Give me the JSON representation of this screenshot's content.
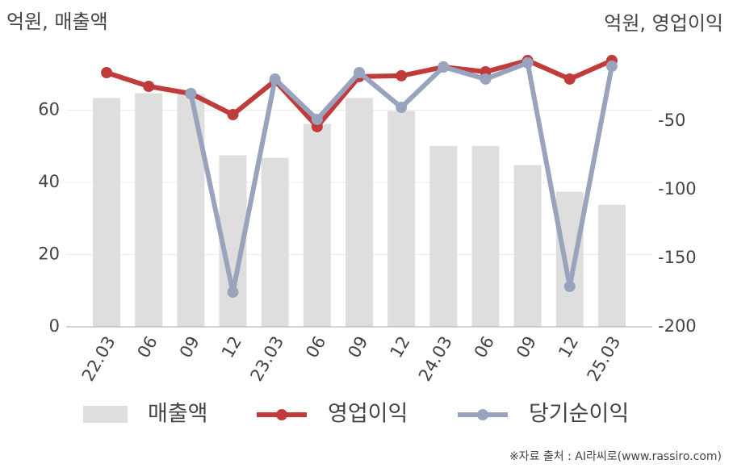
{
  "chart_data": {
    "type": "bar_line",
    "y_label": "억원, 매출액",
    "y2_label": "억원, 영업이익",
    "source": "※자료 출처 : AI라씨로(www.rassiro.com)",
    "categories": [
      "22.03",
      "06",
      "09",
      "12",
      "23.03",
      "06",
      "09",
      "12",
      "24.03",
      "06",
      "09",
      "12",
      "25.03"
    ],
    "series": [
      {
        "name": "매출액",
        "type": "bar",
        "axis": "y",
        "color": "#dedede",
        "values": [
          63.4,
          64.7,
          64.5,
          47.5,
          46.8,
          56.2,
          63.4,
          59.8,
          50.1,
          50.1,
          44.8,
          37.4,
          33.8
        ]
      },
      {
        "name": "영업이익",
        "type": "line",
        "axis": "y2",
        "color": "#c23b3b",
        "values": [
          -14.7,
          -24.7,
          -30,
          -45.3,
          -20.6,
          -54.1,
          -17.6,
          -17,
          -10.6,
          -14.1,
          -5.9,
          -19.4,
          -5.9
        ]
      },
      {
        "name": "당기순이익",
        "type": "line",
        "axis": "y2",
        "color": "#98a3bd",
        "values": [
          null,
          null,
          -30,
          -174.7,
          -19.4,
          -48.8,
          -14.7,
          -40,
          -10.6,
          -19.4,
          -7.6,
          -170.6,
          -10
        ]
      }
    ],
    "ylim": [
      0,
      76
    ],
    "yticks": [
      0,
      20,
      40,
      60
    ],
    "y2lim": [
      -200,
      0
    ],
    "y2ticks": [
      -200,
      -150,
      -100,
      -50
    ],
    "grid": true
  }
}
